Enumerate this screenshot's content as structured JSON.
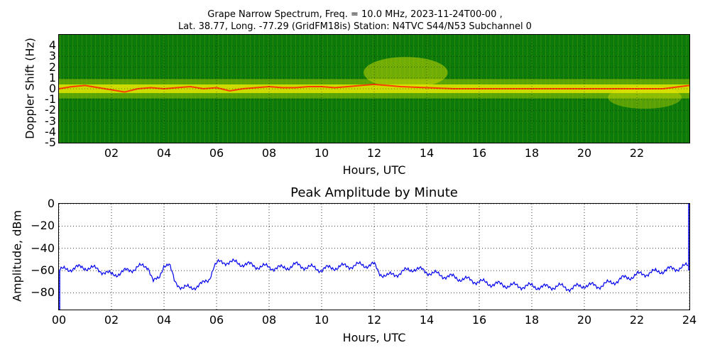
{
  "figure": {
    "title_line1": "Grape Narrow Spectrum, Freq. = 10.0 MHz, 2023-11-24T00-00 ,",
    "title_line2": "Lat.  38.77, Long. -77.29 (GridFM18is) Station: N4TVC S44/N53 Subchannel 0"
  },
  "chart_data": [
    {
      "type": "heatmap",
      "title": "",
      "xlabel": "Hours, UTC",
      "ylabel": "Doppler Shift (Hz)",
      "xlim": [
        0,
        24
      ],
      "ylim": [
        -5,
        5
      ],
      "x_ticks": [
        "02",
        "04",
        "06",
        "08",
        "10",
        "12",
        "14",
        "16",
        "18",
        "20",
        "22"
      ],
      "x_tick_values": [
        2,
        4,
        6,
        8,
        10,
        12,
        14,
        16,
        18,
        20,
        22
      ],
      "y_ticks": [
        "4",
        "3",
        "2",
        "1",
        "0",
        "-1",
        "-2",
        "-3",
        "-4",
        "-5"
      ],
      "y_tick_values": [
        4,
        3,
        2,
        1,
        0,
        -1,
        -2,
        -3,
        -4,
        -5
      ],
      "grid": true,
      "colors": {
        "background": "#0b7a0b",
        "mid": "#e8e800",
        "peak": "#ff2200"
      },
      "peak_trace": {
        "x": [
          0,
          0.5,
          1,
          1.5,
          2,
          2.5,
          3,
          3.5,
          4,
          4.5,
          5,
          5.5,
          6,
          6.5,
          7,
          7.5,
          8,
          8.5,
          9,
          9.5,
          10,
          10.5,
          11,
          11.5,
          12,
          12.5,
          13,
          14,
          15,
          16,
          17,
          18,
          19,
          20,
          21,
          22,
          23,
          24
        ],
        "y": [
          0,
          0.2,
          0.3,
          0.1,
          -0.1,
          -0.3,
          0.0,
          0.1,
          0.0,
          0.1,
          0.2,
          0.0,
          0.1,
          -0.2,
          0.0,
          0.1,
          0.2,
          0.1,
          0.1,
          0.2,
          0.2,
          0.1,
          0.2,
          0.3,
          0.4,
          0.3,
          0.2,
          0.1,
          0.0,
          0.0,
          0.0,
          0.0,
          0.0,
          0.0,
          0.0,
          0.0,
          0.0,
          0.3
        ]
      }
    },
    {
      "type": "line",
      "title": "Peak Amplitude by Minute",
      "xlabel": "Hours, UTC",
      "ylabel": "Amplitude, dBm",
      "xlim": [
        0,
        24
      ],
      "ylim": [
        -95,
        0
      ],
      "x_ticks": [
        "00",
        "02",
        "04",
        "06",
        "08",
        "10",
        "12",
        "14",
        "16",
        "18",
        "20",
        "22",
        "24"
      ],
      "x_tick_values": [
        0,
        2,
        4,
        6,
        8,
        10,
        12,
        14,
        16,
        18,
        20,
        22,
        24
      ],
      "y_ticks": [
        "0",
        "−20",
        "−40",
        "−60",
        "−80"
      ],
      "y_tick_values": [
        0,
        -20,
        -40,
        -60,
        -80
      ],
      "grid": true,
      "series": [
        {
          "color": "#0000ee",
          "x": [
            0,
            0.5,
            1,
            1.5,
            2,
            2.5,
            3,
            3.4,
            3.6,
            3.8,
            4,
            4.2,
            4.4,
            4.7,
            5,
            5.3,
            5.5,
            5.7,
            5.9,
            6.1,
            6.4,
            7,
            7.5,
            8,
            8.5,
            9,
            9.5,
            10,
            10.5,
            11,
            11.5,
            12,
            12.2,
            12.5,
            13,
            13.5,
            14,
            14.5,
            15,
            15.5,
            16,
            16.5,
            17,
            17.5,
            18,
            18.5,
            19,
            19.5,
            20,
            20.5,
            21,
            21.5,
            22,
            22.5,
            23,
            23.5,
            23.95
          ],
          "y": [
            -60,
            -58,
            -57,
            -59,
            -64,
            -61,
            -57,
            -56,
            -70,
            -68,
            -54,
            -55,
            -70,
            -75,
            -76,
            -73,
            -72,
            -68,
            -56,
            -53,
            -52,
            -54,
            -56,
            -57,
            -58,
            -55,
            -57,
            -59,
            -57,
            -56,
            -55,
            -55,
            -62,
            -65,
            -62,
            -58,
            -61,
            -64,
            -66,
            -68,
            -70,
            -72,
            -73,
            -74,
            -74,
            -75,
            -74,
            -76,
            -73,
            -74,
            -71,
            -67,
            -64,
            -62,
            -60,
            -58,
            -56
          ]
        }
      ]
    }
  ]
}
